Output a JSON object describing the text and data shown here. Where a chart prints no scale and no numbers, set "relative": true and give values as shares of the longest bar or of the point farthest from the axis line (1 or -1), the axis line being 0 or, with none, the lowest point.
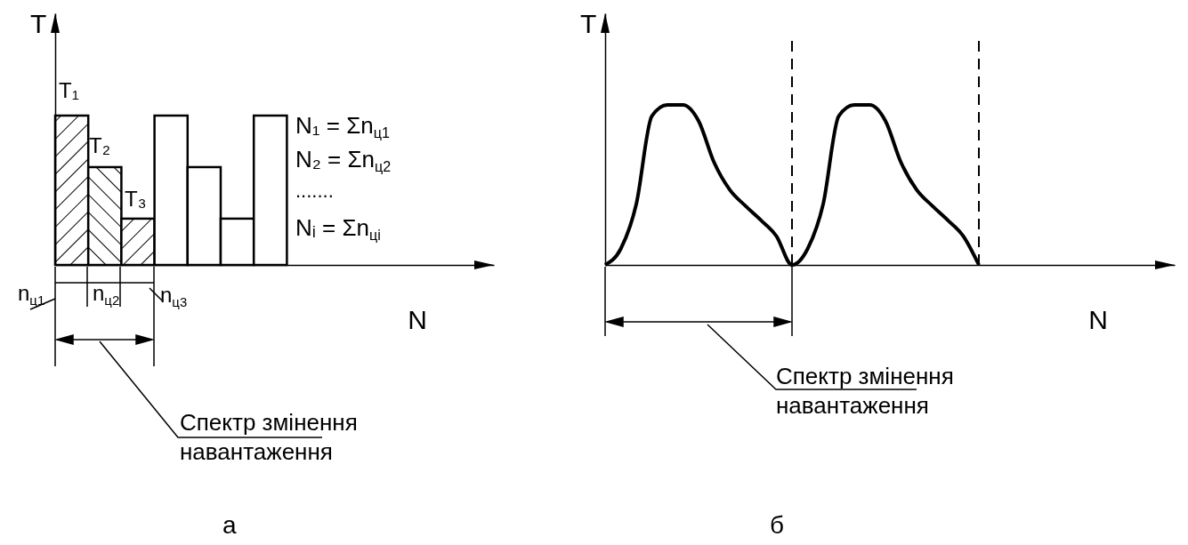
{
  "chart_data": [
    {
      "type": "bar",
      "xlabel": "N",
      "ylabel": "T",
      "relative": true,
      "grid": false,
      "stacked": true,
      "categories": [
        null,
        null,
        null,
        null,
        null,
        null,
        null
      ],
      "series": [
        {
          "color": "#000000",
          "values": [
            1,
            0.655,
            0.31,
            null,
            null,
            null,
            null
          ]
        },
        {
          "color": "#ffffff",
          "values": [
            null,
            null,
            null,
            1,
            0.655,
            0.31,
            1
          ]
        }
      ],
      "annotations": [
        "T₁",
        "T₂",
        "T₃",
        "N₁ = Σn$_{ц1}$",
        "N₂ = Σn$_{ц2}$",
        ".......",
        "Nᵢ = Σn$_{цi}$",
        "n$_{ц1}$",
        "n$_{ц2}$",
        "n$_{ц3}$",
        "Спектр змінення\nнавантаження",
        "а"
      ]
    },
    {
      "type": "line",
      "xlabel": "N",
      "ylabel": "T",
      "relative": true,
      "grid": false,
      "marker": "none",
      "line_style": "solid",
      "color": "#000000",
      "categories": [
        null,
        null,
        null,
        null,
        null,
        null,
        null,
        null,
        null,
        null,
        null,
        null,
        null,
        null,
        null,
        null,
        null,
        null,
        null,
        null,
        null,
        null,
        null,
        null,
        null
      ],
      "values": [
        0,
        0.1,
        0.38,
        0.93,
        1,
        1,
        0.9,
        0.64,
        0.47,
        0.37,
        0.28,
        0.18,
        0,
        0.1,
        0.38,
        0.93,
        1,
        1,
        0.9,
        0.64,
        0.47,
        0.37,
        0.28,
        0.18,
        0
      ],
      "ref_lines": [
        {
          "axis": "x",
          "line_style": "dashed"
        },
        {
          "axis": "x",
          "line_style": "dashed"
        }
      ],
      "annotations": [
        "Спектр змінення\nнавантаження",
        "б"
      ]
    }
  ]
}
